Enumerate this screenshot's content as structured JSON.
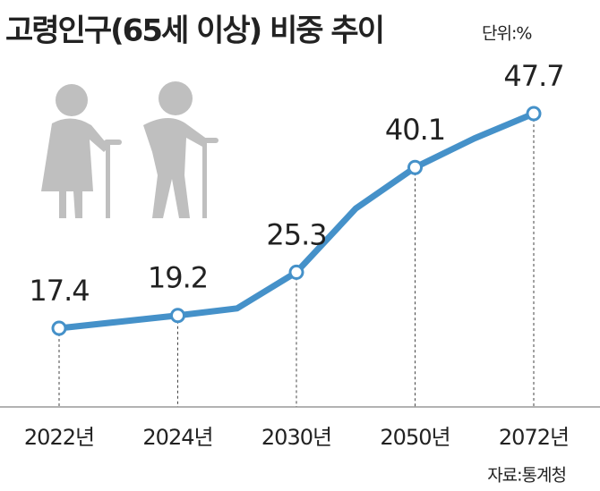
{
  "chart_data": {
    "type": "line",
    "title": "고령인구(65세 이상) 비중 추이",
    "unit": "단위:%",
    "source": "자료:통계청",
    "categories": [
      "2022년",
      null,
      "2024년",
      null,
      "2030년",
      null,
      "2050년",
      null,
      "2072년"
    ],
    "values": [
      17.4,
      18.3,
      19.2,
      20.2,
      25.3,
      34.3,
      40.1,
      44.2,
      47.7
    ],
    "color": "#4591c9"
  }
}
